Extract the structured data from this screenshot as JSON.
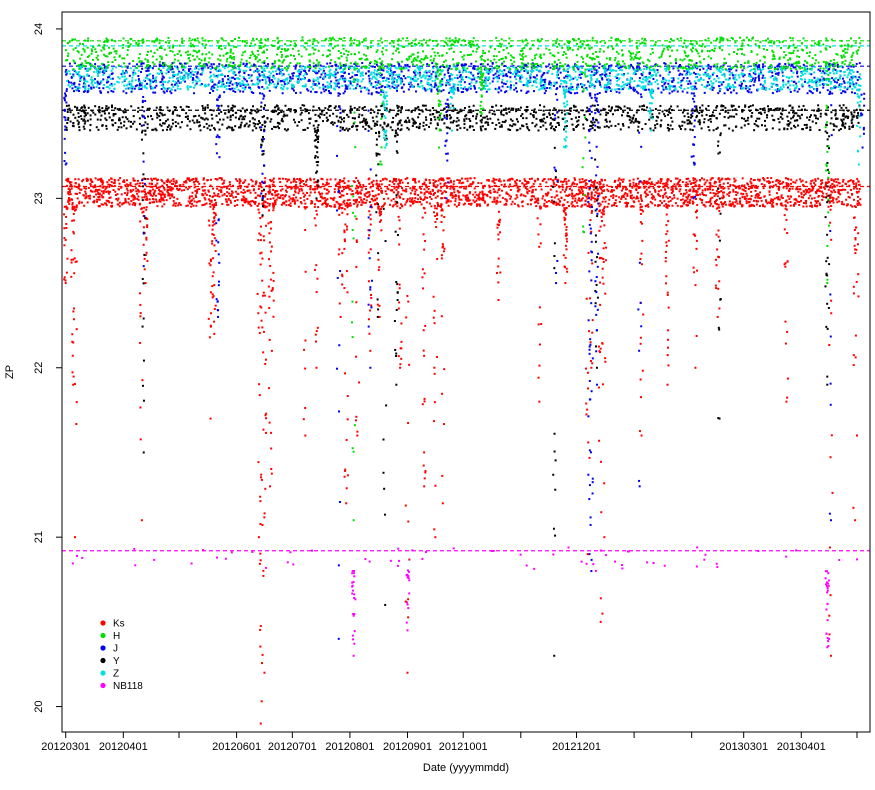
{
  "chart_data": {
    "type": "scatter",
    "xlabel": "Date (yyyymmdd)",
    "ylabel": "ZP",
    "ylim": [
      19.85,
      24.1
    ],
    "yticks": [
      20,
      21,
      22,
      23,
      24
    ],
    "xlim": [
      "2012-02-28",
      "2013-05-08"
    ],
    "xticks": [
      {
        "date": "2012-03-01",
        "label": "20120301"
      },
      {
        "date": "2012-04-01",
        "label": "20120401"
      },
      {
        "date": "2012-05-01",
        "label": ""
      },
      {
        "date": "2012-06-01",
        "label": "20120601"
      },
      {
        "date": "2012-07-01",
        "label": "20120701"
      },
      {
        "date": "2012-08-01",
        "label": "20120801"
      },
      {
        "date": "2012-09-01",
        "label": "20120901"
      },
      {
        "date": "2012-10-01",
        "label": "20121001"
      },
      {
        "date": "2012-11-01",
        "label": ""
      },
      {
        "date": "2012-12-01",
        "label": "20121201"
      },
      {
        "date": "2013-01-01",
        "label": ""
      },
      {
        "date": "2013-02-01",
        "label": ""
      },
      {
        "date": "2013-03-01",
        "label": "20130301"
      },
      {
        "date": "2013-04-01",
        "label": "20130401"
      },
      {
        "date": "2013-05-01",
        "label": ""
      }
    ],
    "series": [
      {
        "name": "Ks",
        "color": "#ff0000",
        "reference": 23.07,
        "band": [
          22.95,
          23.12
        ],
        "dips": [
          {
            "date": "2012-03-01",
            "min": 22.5
          },
          {
            "date": "2012-03-05",
            "min": 21.9
          },
          {
            "date": "2012-03-06",
            "min": 21.0
          },
          {
            "date": "2012-04-11",
            "min": 21.1
          },
          {
            "date": "2012-04-13",
            "min": 22.5
          },
          {
            "date": "2012-05-18",
            "min": 21.7
          },
          {
            "date": "2012-05-20",
            "min": 22.2
          },
          {
            "date": "2012-06-13",
            "min": 21.0
          },
          {
            "date": "2012-06-14",
            "min": 19.9
          },
          {
            "date": "2012-06-16",
            "min": 20.2
          },
          {
            "date": "2012-06-19",
            "min": 21.3
          },
          {
            "date": "2012-06-20",
            "min": 22.1
          },
          {
            "date": "2012-07-08",
            "min": 21.6
          },
          {
            "date": "2012-07-14",
            "min": 22.0
          },
          {
            "date": "2012-07-27",
            "min": 22.3
          },
          {
            "date": "2012-07-30",
            "min": 21.2
          },
          {
            "date": "2012-08-05",
            "min": 21.6
          },
          {
            "date": "2012-08-12",
            "min": 22.1
          },
          {
            "date": "2012-08-17",
            "min": 22.3
          },
          {
            "date": "2012-08-28",
            "min": 22.0
          },
          {
            "date": "2012-09-01",
            "min": 20.2
          },
          {
            "date": "2012-09-10",
            "min": 21.3
          },
          {
            "date": "2012-09-16",
            "min": 21.0
          },
          {
            "date": "2012-09-20",
            "min": 21.2
          },
          {
            "date": "2012-10-20",
            "min": 22.4
          },
          {
            "date": "2012-11-11",
            "min": 21.8
          },
          {
            "date": "2012-11-25",
            "min": 22.5
          },
          {
            "date": "2012-12-07",
            "min": 20.9
          },
          {
            "date": "2012-12-09",
            "min": 22.0
          },
          {
            "date": "2012-12-14",
            "min": 20.5
          },
          {
            "date": "2012-12-16",
            "min": 21.0
          },
          {
            "date": "2013-01-05",
            "min": 21.6
          },
          {
            "date": "2013-01-19",
            "min": 21.9
          },
          {
            "date": "2013-02-03",
            "min": 22.0
          },
          {
            "date": "2013-02-15",
            "min": 22.3
          },
          {
            "date": "2013-03-24",
            "min": 21.8
          },
          {
            "date": "2013-04-17",
            "min": 20.3
          },
          {
            "date": "2013-04-30",
            "min": 21.1
          },
          {
            "date": "2013-05-01",
            "min": 21.6
          }
        ]
      },
      {
        "name": "H",
        "color": "#00e000",
        "reference": 23.93,
        "band": [
          23.76,
          23.95
        ],
        "dips": [
          {
            "date": "2012-08-18",
            "min": 23.2
          },
          {
            "date": "2012-09-18",
            "min": 23.3
          },
          {
            "date": "2012-10-11",
            "min": 23.5
          },
          {
            "date": "2012-08-03",
            "min": 21.1
          },
          {
            "date": "2012-12-05",
            "min": 22.8
          },
          {
            "date": "2013-04-15",
            "min": 22.5
          }
        ]
      },
      {
        "name": "J",
        "color": "#0000ee",
        "reference": 23.78,
        "band": [
          23.62,
          23.8
        ],
        "dips": [
          {
            "date": "2012-03-01",
            "min": 23.2
          },
          {
            "date": "2012-04-12",
            "min": 22.6
          },
          {
            "date": "2012-05-22",
            "min": 22.3
          },
          {
            "date": "2012-06-15",
            "min": 23.0
          },
          {
            "date": "2012-07-26",
            "min": 20.4
          },
          {
            "date": "2012-08-12",
            "min": 22.0
          },
          {
            "date": "2012-09-22",
            "min": 23.0
          },
          {
            "date": "2012-11-20",
            "min": 22.5
          },
          {
            "date": "2012-12-08",
            "min": 20.9
          },
          {
            "date": "2012-12-09",
            "min": 20.8
          },
          {
            "date": "2012-12-12",
            "min": 21.9
          },
          {
            "date": "2013-01-04",
            "min": 21.3
          },
          {
            "date": "2013-02-02",
            "min": 23.0
          },
          {
            "date": "2013-04-17",
            "min": 21.1
          },
          {
            "date": "2013-05-04",
            "min": 23.3
          }
        ]
      },
      {
        "name": "Y",
        "color": "#000000",
        "reference": 23.52,
        "band": [
          23.4,
          23.55
        ],
        "dips": [
          {
            "date": "2012-04-12",
            "min": 21.5
          },
          {
            "date": "2012-06-15",
            "min": 22.9
          },
          {
            "date": "2012-07-14",
            "min": 23.0
          },
          {
            "date": "2012-08-16",
            "min": 22.3
          },
          {
            "date": "2012-08-20",
            "min": 20.6
          },
          {
            "date": "2012-08-26",
            "min": 21.9
          },
          {
            "date": "2012-12-12",
            "min": 22.0
          },
          {
            "date": "2013-02-16",
            "min": 21.7
          },
          {
            "date": "2013-04-15",
            "min": 21.9
          },
          {
            "date": "2012-11-19",
            "min": 20.3
          }
        ]
      },
      {
        "name": "Z",
        "color": "#00e0e0",
        "reference": 23.9,
        "band": [
          23.64,
          23.78
        ],
        "dips": [
          {
            "date": "2012-08-20",
            "min": 23.3
          },
          {
            "date": "2012-09-25",
            "min": 23.4
          },
          {
            "date": "2012-11-25",
            "min": 23.3
          },
          {
            "date": "2013-01-10",
            "min": 23.4
          },
          {
            "date": "2013-05-02",
            "min": 23.2
          }
        ]
      },
      {
        "name": "NB118",
        "color": "#ff00ff",
        "reference": 20.92,
        "band": [
          20.8,
          20.94
        ],
        "dips": [
          {
            "date": "2012-08-03",
            "min": 20.3
          },
          {
            "date": "2012-09-01",
            "min": 20.45
          },
          {
            "date": "2013-04-15",
            "min": 20.35
          }
        ]
      }
    ],
    "legend_position": "bottom-left",
    "grid": false
  }
}
